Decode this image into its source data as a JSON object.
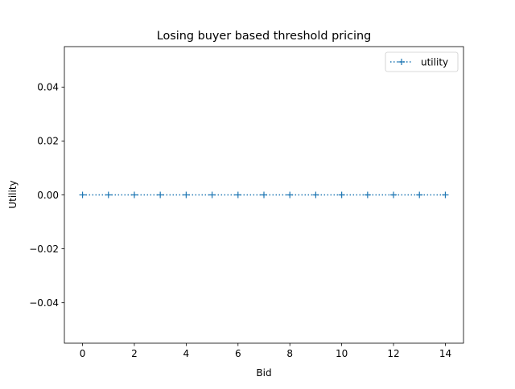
{
  "chart_data": {
    "type": "line",
    "title": "Losing buyer based threshold pricing",
    "xlabel": "Bid",
    "ylabel": "Utility",
    "xlim": [
      -0.7,
      14.7
    ],
    "ylim": [
      -0.055,
      0.055
    ],
    "x_ticks": [
      0,
      2,
      4,
      6,
      8,
      10,
      12,
      14
    ],
    "x_tick_labels": [
      "0",
      "2",
      "4",
      "6",
      "8",
      "10",
      "12",
      "14"
    ],
    "y_ticks": [
      -0.04,
      -0.02,
      0.0,
      0.02,
      0.04
    ],
    "y_tick_labels": [
      "−0.04",
      "−0.02",
      "0.00",
      "0.02",
      "0.04"
    ],
    "grid": false,
    "legend_position": "top-right",
    "series": [
      {
        "name": "utility",
        "line_style": "dotted",
        "marker": "plus",
        "color": "#1f77b4",
        "x": [
          0,
          1,
          2,
          3,
          4,
          5,
          6,
          7,
          8,
          9,
          10,
          11,
          12,
          13,
          14
        ],
        "y": [
          0,
          0,
          0,
          0,
          0,
          0,
          0,
          0,
          0,
          0,
          0,
          0,
          0,
          0,
          0
        ]
      }
    ]
  }
}
